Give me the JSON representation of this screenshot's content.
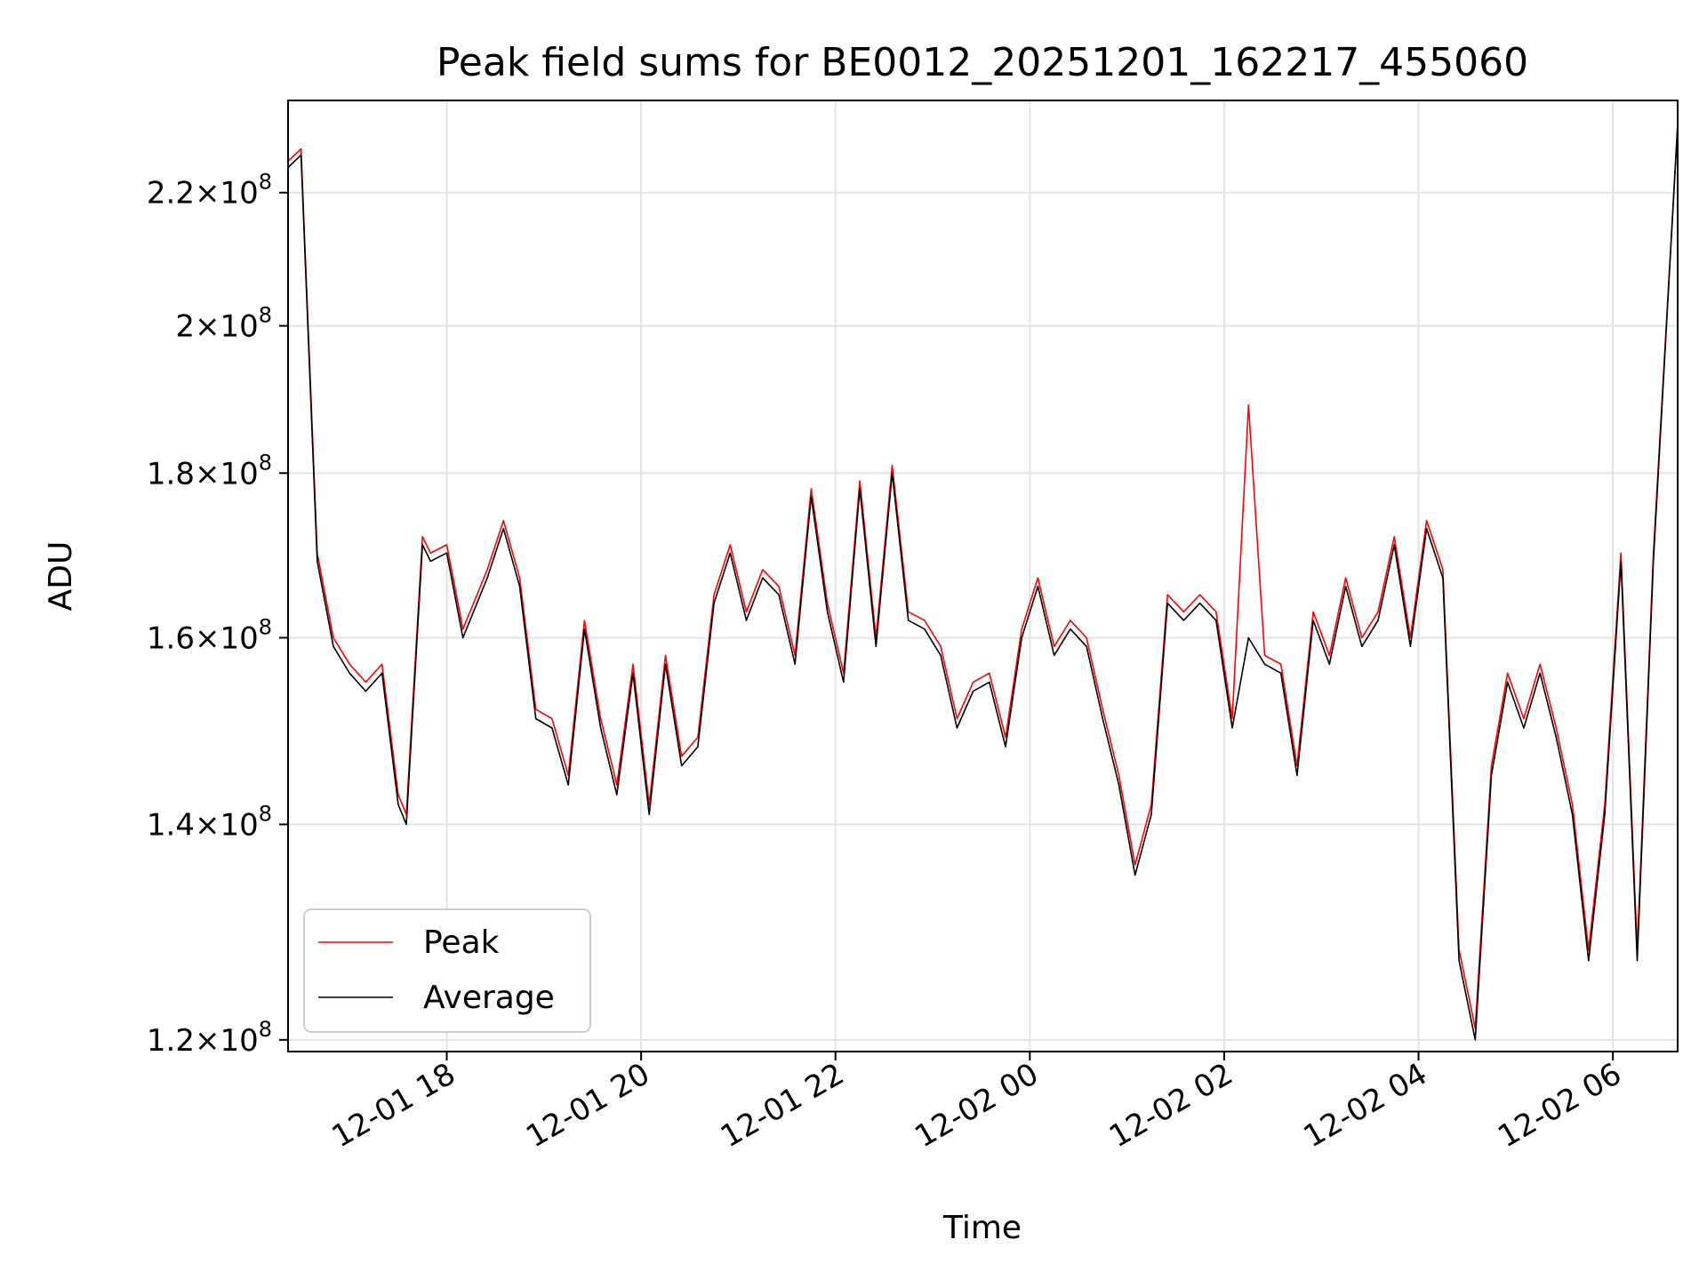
{
  "chart_data": {
    "type": "line",
    "title": "Peak field sums for BE0012_20251201_162217_455060",
    "xlabel": "Time",
    "ylabel": "ADU",
    "yscale": "log",
    "grid": true,
    "legend_position": "lower-left",
    "xlim": [
      "2025-12-01 16:22",
      "2025-12-02 06:40"
    ],
    "ylim": [
      119000000,
      235000000
    ],
    "x_ticks": [
      "12-01 18",
      "12-01 20",
      "12-01 22",
      "12-02 00",
      "12-02 02",
      "12-02 04",
      "12-02 06"
    ],
    "y_ticks": [
      {
        "value": 120000000,
        "mantissa": "1.2",
        "exponent": "8"
      },
      {
        "value": 140000000,
        "mantissa": "1.4",
        "exponent": "8"
      },
      {
        "value": 160000000,
        "mantissa": "1.6",
        "exponent": "8"
      },
      {
        "value": 180000000,
        "mantissa": "1.8",
        "exponent": "8"
      },
      {
        "value": 200000000,
        "mantissa": "2",
        "exponent": "8"
      },
      {
        "value": 220000000,
        "mantissa": "2.2",
        "exponent": "8"
      }
    ],
    "x": [
      "12-01 16:22",
      "12-01 16:30",
      "12-01 16:40",
      "12-01 16:50",
      "12-01 17:00",
      "12-01 17:10",
      "12-01 17:20",
      "12-01 17:30",
      "12-01 17:35",
      "12-01 17:45",
      "12-01 17:50",
      "12-01 18:00",
      "12-01 18:10",
      "12-01 18:25",
      "12-01 18:35",
      "12-01 18:45",
      "12-01 18:55",
      "12-01 19:05",
      "12-01 19:15",
      "12-01 19:25",
      "12-01 19:35",
      "12-01 19:45",
      "12-01 19:55",
      "12-01 20:05",
      "12-01 20:15",
      "12-01 20:25",
      "12-01 20:35",
      "12-01 20:45",
      "12-01 20:55",
      "12-01 21:05",
      "12-01 21:15",
      "12-01 21:25",
      "12-01 21:35",
      "12-01 21:45",
      "12-01 21:55",
      "12-01 22:05",
      "12-01 22:15",
      "12-01 22:25",
      "12-01 22:35",
      "12-01 22:45",
      "12-01 22:55",
      "12-01 23:05",
      "12-01 23:15",
      "12-01 23:25",
      "12-01 23:35",
      "12-01 23:45",
      "12-01 23:55",
      "12-02 00:05",
      "12-02 00:15",
      "12-02 00:25",
      "12-02 00:35",
      "12-02 00:45",
      "12-02 00:55",
      "12-02 01:05",
      "12-02 01:15",
      "12-02 01:25",
      "12-02 01:35",
      "12-02 01:45",
      "12-02 01:55",
      "12-02 02:05",
      "12-02 02:15",
      "12-02 02:25",
      "12-02 02:35",
      "12-02 02:45",
      "12-02 02:55",
      "12-02 03:05",
      "12-02 03:15",
      "12-02 03:25",
      "12-02 03:35",
      "12-02 03:45",
      "12-02 03:55",
      "12-02 04:05",
      "12-02 04:15",
      "12-02 04:25",
      "12-02 04:35",
      "12-02 04:45",
      "12-02 04:55",
      "12-02 05:05",
      "12-02 05:15",
      "12-02 05:25",
      "12-02 05:35",
      "12-02 05:45",
      "12-02 05:55",
      "12-02 06:05",
      "12-02 06:15",
      "12-02 06:25",
      "12-02 06:40"
    ],
    "series": [
      {
        "name": "Peak",
        "color": "#ff0000",
        "values": [
          225000000,
          227000000,
          170000000,
          160000000,
          157000000,
          155000000,
          157000000,
          143000000,
          141000000,
          172000000,
          170000000,
          171000000,
          161000000,
          168000000,
          174000000,
          167000000,
          152000000,
          151000000,
          145000000,
          162000000,
          151000000,
          144000000,
          157000000,
          142000000,
          158000000,
          147000000,
          149000000,
          165000000,
          171000000,
          163000000,
          168000000,
          166000000,
          158000000,
          178000000,
          164000000,
          156000000,
          179000000,
          160000000,
          181000000,
          163000000,
          162000000,
          159000000,
          151000000,
          155000000,
          156000000,
          149000000,
          161000000,
          167000000,
          159000000,
          162000000,
          160000000,
          152000000,
          145000000,
          136000000,
          142000000,
          165000000,
          163000000,
          165000000,
          163000000,
          151000000,
          189000000,
          158000000,
          157000000,
          146000000,
          163000000,
          158000000,
          167000000,
          160000000,
          163000000,
          172000000,
          160000000,
          174000000,
          168000000,
          128000000,
          121000000,
          146000000,
          156000000,
          151000000,
          157000000,
          150000000,
          142000000,
          128000000,
          142000000,
          170000000,
          128000000,
          170000000,
          231000000
        ]
      },
      {
        "name": "Average",
        "color": "#000000",
        "values": [
          224000000,
          226000000,
          169000000,
          159000000,
          156000000,
          154000000,
          156000000,
          142000000,
          140000000,
          171000000,
          169000000,
          170000000,
          160000000,
          167000000,
          173000000,
          166000000,
          151000000,
          150000000,
          144000000,
          161000000,
          150000000,
          143000000,
          156000000,
          141000000,
          157000000,
          146000000,
          148000000,
          164000000,
          170000000,
          162000000,
          167000000,
          165000000,
          157000000,
          177000000,
          163000000,
          155000000,
          178000000,
          159000000,
          180000000,
          162000000,
          161000000,
          158000000,
          150000000,
          154000000,
          155000000,
          148000000,
          160000000,
          166000000,
          158000000,
          161000000,
          159000000,
          151000000,
          144000000,
          135000000,
          141000000,
          164000000,
          162000000,
          164000000,
          162000000,
          150000000,
          160000000,
          157000000,
          156000000,
          145000000,
          162000000,
          157000000,
          166000000,
          159000000,
          162000000,
          171000000,
          159000000,
          173000000,
          167000000,
          127000000,
          120000000,
          145000000,
          155000000,
          150000000,
          156000000,
          149000000,
          141000000,
          127000000,
          141000000,
          169000000,
          127000000,
          169000000,
          231000000
        ]
      }
    ]
  }
}
